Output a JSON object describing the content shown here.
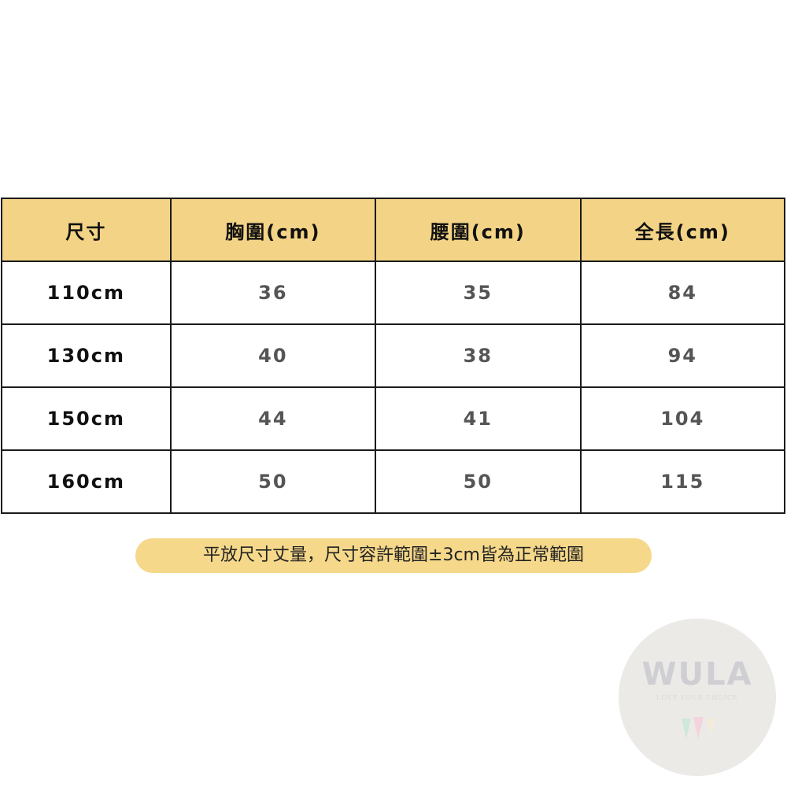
{
  "table": {
    "headers": [
      "尺寸",
      "胸圍(cm)",
      "腰圍(cm)",
      "全長(cm)"
    ],
    "rows": [
      [
        "110cm",
        "36",
        "35",
        "84"
      ],
      [
        "130cm",
        "40",
        "38",
        "94"
      ],
      [
        "150cm",
        "44",
        "41",
        "104"
      ],
      [
        "160cm",
        "50",
        "50",
        "115"
      ]
    ],
    "header_color": "#f3d386"
  },
  "note": "平放尺寸丈量，尺寸容許範圍±3cm皆為正常範圍",
  "watermark": {
    "brand": "WULA",
    "tagline": "LOVE YOUR CHOICE"
  }
}
